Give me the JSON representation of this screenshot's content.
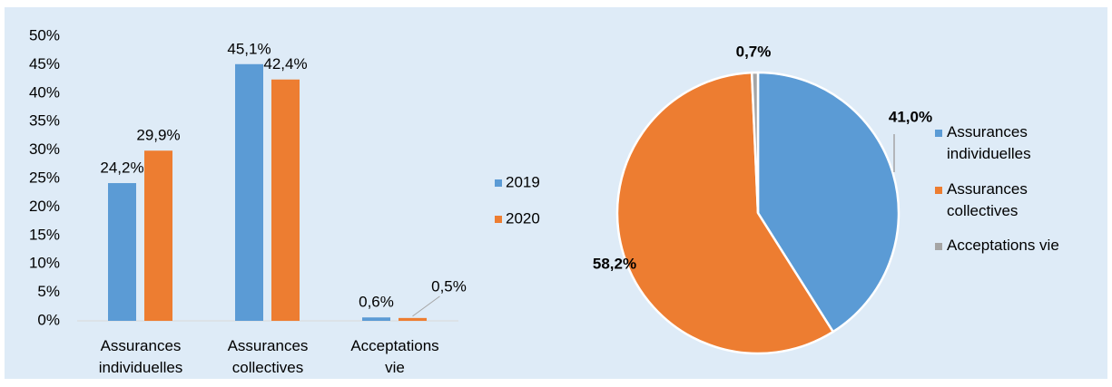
{
  "chart_data": [
    {
      "type": "bar",
      "categories": [
        "Assurances individuelles",
        "Assurances collectives",
        "Acceptations vie"
      ],
      "series": [
        {
          "name": "2019",
          "color": "#5b9bd5",
          "values": [
            24.2,
            45.1,
            0.6
          ],
          "value_labels": [
            "24,2%",
            "45,1%",
            "0,6%"
          ]
        },
        {
          "name": "2020",
          "color": "#ed7d31",
          "values": [
            29.9,
            42.4,
            0.5
          ],
          "value_labels": [
            "29,9%",
            "42,4%",
            "0,5%"
          ]
        }
      ],
      "ylim": [
        0,
        50
      ],
      "yticks": [
        {
          "value": 0,
          "label": "0%"
        },
        {
          "value": 5,
          "label": "5%"
        },
        {
          "value": 10,
          "label": "10%"
        },
        {
          "value": 15,
          "label": "15%"
        },
        {
          "value": 20,
          "label": "20%"
        },
        {
          "value": 25,
          "label": "25%"
        },
        {
          "value": 30,
          "label": "30%"
        },
        {
          "value": 35,
          "label": "35%"
        },
        {
          "value": 40,
          "label": "40%"
        },
        {
          "value": 45,
          "label": "45%"
        },
        {
          "value": 50,
          "label": "50%"
        }
      ],
      "legend": "right"
    },
    {
      "type": "pie",
      "categories": [
        "Assurances individuelles",
        "Assurances collectives",
        "Acceptations vie"
      ],
      "values": [
        41.0,
        58.2,
        0.7
      ],
      "value_labels": [
        "41,0%",
        "58,2%",
        "0,7%"
      ],
      "colors": [
        "#5b9bd5",
        "#ed7d31",
        "#a5a5a5"
      ],
      "legend": "right"
    }
  ]
}
